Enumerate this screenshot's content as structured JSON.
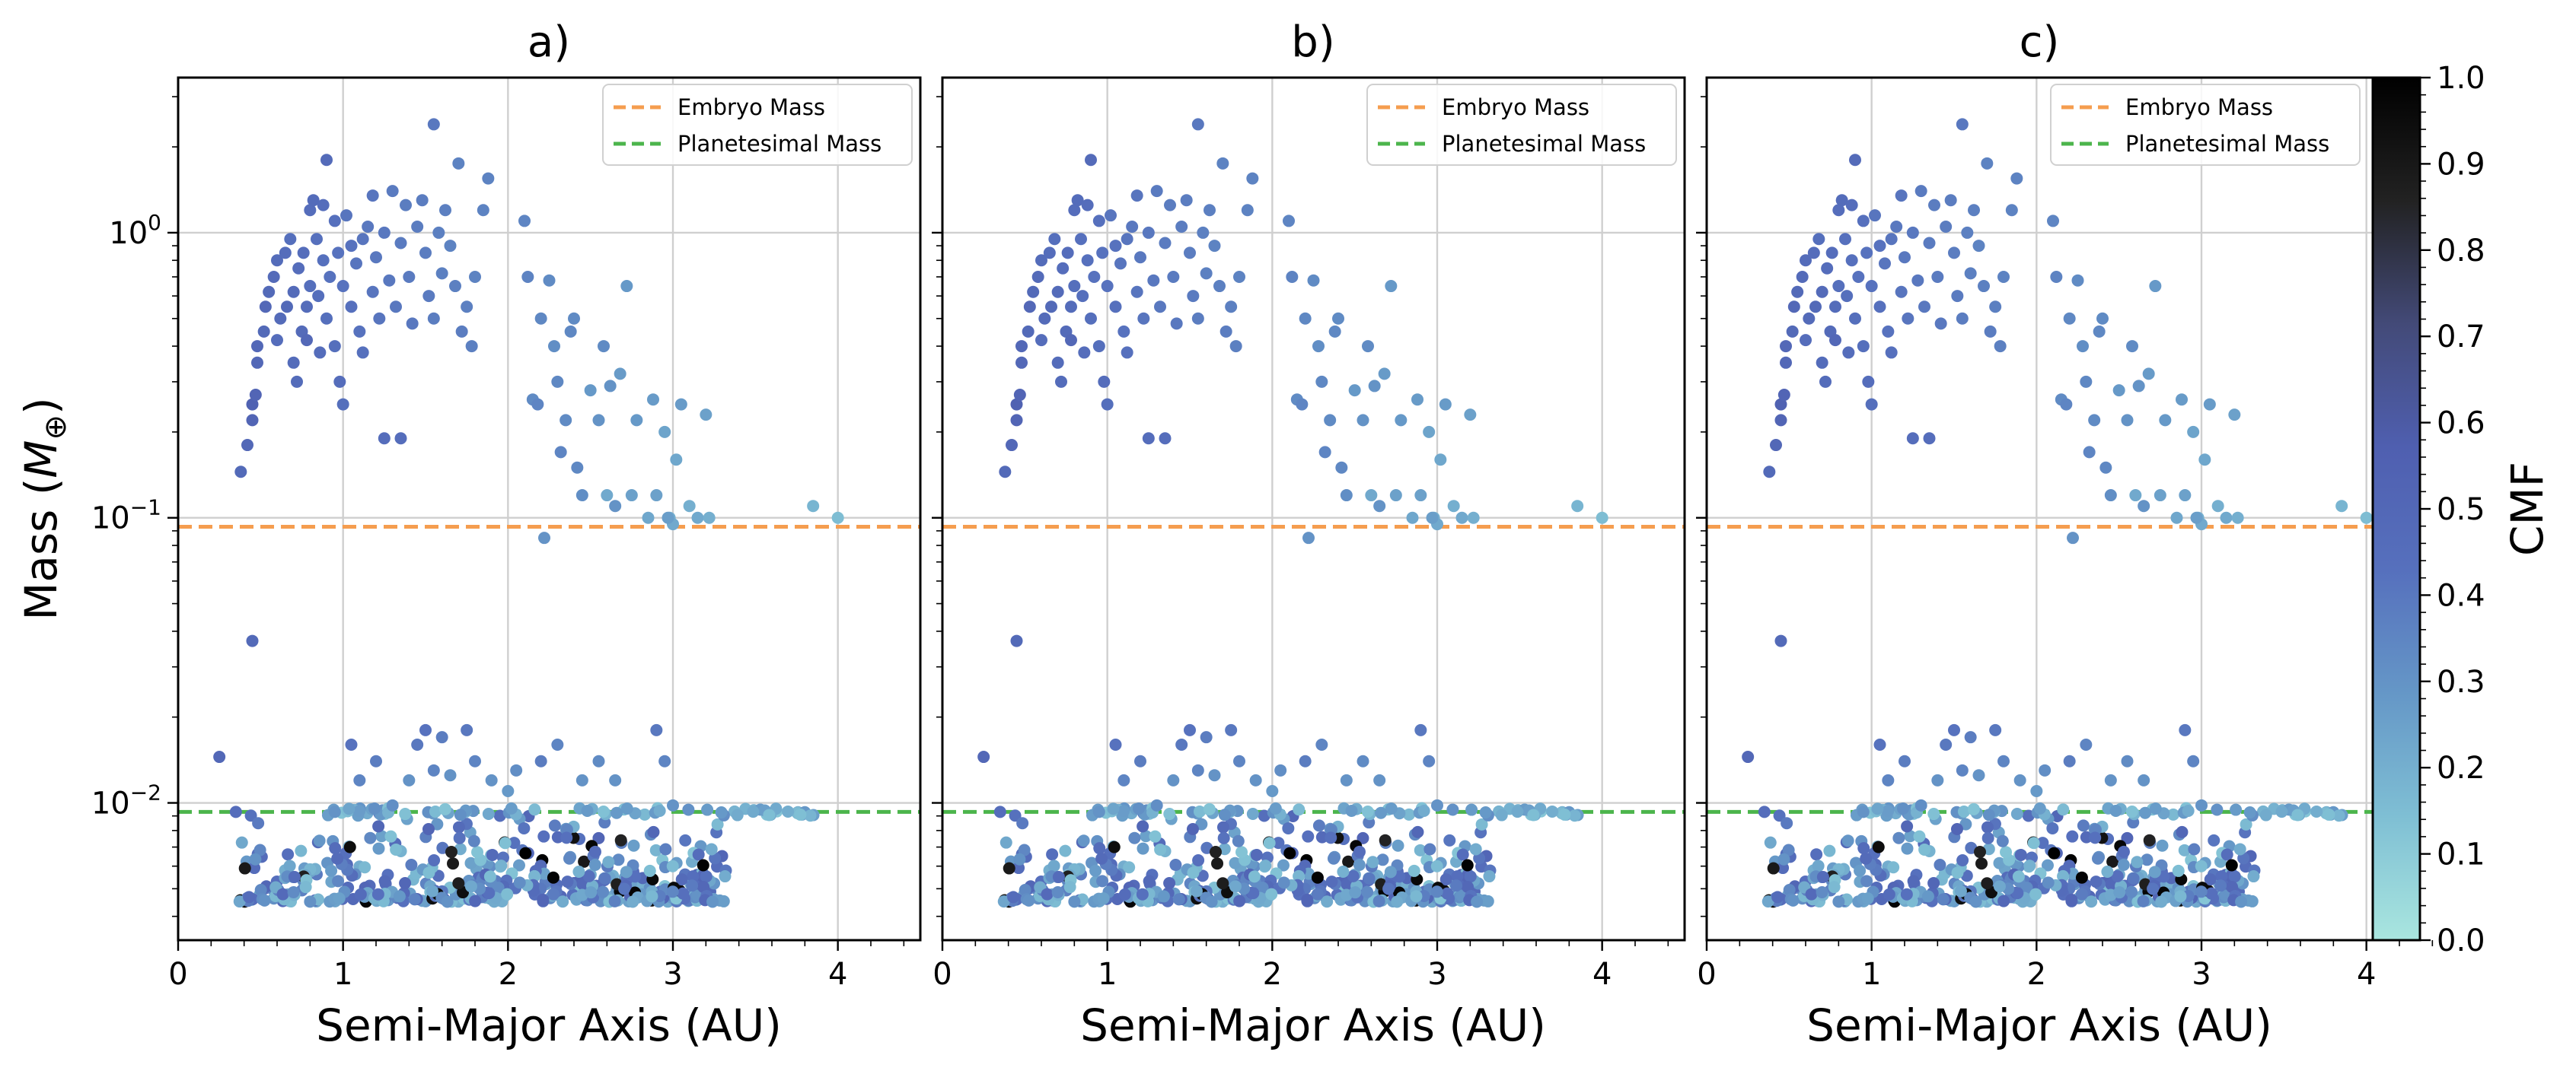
{
  "chart_data": {
    "type": "scatter",
    "x_scale": "linear",
    "y_scale": "log",
    "xlim": [
      0,
      4.5
    ],
    "ylim": [
      0.0033,
      3.5
    ],
    "ylabel_main": "Mass (",
    "ylabel_sym": "M",
    "ylabel_sub": "⊕",
    "ylabel_end": ")",
    "xlabel": "Semi-Major Axis (AU)",
    "x_ticks": [
      0,
      1,
      2,
      3,
      4
    ],
    "x_tick_labels": [
      "0",
      "1",
      "2",
      "3",
      "4"
    ],
    "y_ticks": [
      0.01,
      0.1,
      1
    ],
    "y_tick_bases": [
      "10",
      "10",
      "10"
    ],
    "y_tick_exps": [
      "−2",
      "−1",
      "0"
    ],
    "grid": true,
    "legend_placement": "top-right",
    "reference_lines": [
      {
        "name": "Embryo Mass",
        "y": 0.093,
        "color": "#f59d4f",
        "style": "dashed"
      },
      {
        "name": "Planetesimal Mass",
        "y": 0.0093,
        "color": "#4cb54c",
        "style": "dashed"
      }
    ],
    "colorbar": {
      "label": "CMF",
      "min": 0,
      "max": 1,
      "ticks": [
        "0.0",
        "0.1",
        "0.2",
        "0.3",
        "0.4",
        "0.5",
        "0.6",
        "0.7",
        "0.8",
        "0.9",
        "1.0"
      ],
      "stops": [
        "#a9e6df",
        "#7fbfd4",
        "#6597c7",
        "#5670bd",
        "#4f5fb0",
        "#434a78",
        "#222222",
        "#000000"
      ]
    },
    "panels": [
      {
        "title": "a)"
      },
      {
        "title": "b)"
      },
      {
        "title": "c)"
      }
    ],
    "large_bodies": [
      [
        0.38,
        0.145,
        0.48
      ],
      [
        0.42,
        0.18,
        0.5
      ],
      [
        0.45,
        0.22,
        0.52
      ],
      [
        0.45,
        0.25,
        0.55
      ],
      [
        0.47,
        0.27,
        0.52
      ],
      [
        0.48,
        0.35,
        0.5
      ],
      [
        0.48,
        0.4,
        0.5
      ],
      [
        0.52,
        0.45,
        0.48
      ],
      [
        0.53,
        0.55,
        0.5
      ],
      [
        0.55,
        0.62,
        0.48
      ],
      [
        0.58,
        0.7,
        0.47
      ],
      [
        0.6,
        0.42,
        0.45
      ],
      [
        0.6,
        0.8,
        0.46
      ],
      [
        0.62,
        0.5,
        0.47
      ],
      [
        0.65,
        0.85,
        0.45
      ],
      [
        0.66,
        0.55,
        0.48
      ],
      [
        0.68,
        0.95,
        0.44
      ],
      [
        0.7,
        0.35,
        0.46
      ],
      [
        0.7,
        0.62,
        0.47
      ],
      [
        0.72,
        0.3,
        0.46
      ],
      [
        0.73,
        0.75,
        0.45
      ],
      [
        0.75,
        0.45,
        0.47
      ],
      [
        0.76,
        0.85,
        0.45
      ],
      [
        0.78,
        0.55,
        0.46
      ],
      [
        0.78,
        0.42,
        0.5
      ],
      [
        0.8,
        0.65,
        0.44
      ],
      [
        0.8,
        1.2,
        0.45
      ],
      [
        0.82,
        1.3,
        0.46
      ],
      [
        0.84,
        0.95,
        0.43
      ],
      [
        0.85,
        0.6,
        0.44
      ],
      [
        0.86,
        0.38,
        0.45
      ],
      [
        0.88,
        0.8,
        0.43
      ],
      [
        0.88,
        1.25,
        0.45
      ],
      [
        0.9,
        0.5,
        0.44
      ],
      [
        0.9,
        1.8,
        0.47
      ],
      [
        0.92,
        0.7,
        0.42
      ],
      [
        0.95,
        1.1,
        0.43
      ],
      [
        0.95,
        0.4,
        0.44
      ],
      [
        0.97,
        0.85,
        0.42
      ],
      [
        0.98,
        0.3,
        0.45
      ],
      [
        1.0,
        0.65,
        0.42
      ],
      [
        1.0,
        0.25,
        0.44
      ],
      [
        1.02,
        1.15,
        0.41
      ],
      [
        1.05,
        0.9,
        0.42
      ],
      [
        1.05,
        0.55,
        0.43
      ],
      [
        1.08,
        0.78,
        0.41
      ],
      [
        1.1,
        0.45,
        0.42
      ],
      [
        1.12,
        0.95,
        0.41
      ],
      [
        1.12,
        0.38,
        0.43
      ],
      [
        1.15,
        1.05,
        0.4
      ],
      [
        1.18,
        0.62,
        0.41
      ],
      [
        1.18,
        1.35,
        0.41
      ],
      [
        1.2,
        0.82,
        0.4
      ],
      [
        1.22,
        0.5,
        0.41
      ],
      [
        1.25,
        1.0,
        0.4
      ],
      [
        1.25,
        0.19,
        0.45
      ],
      [
        1.28,
        0.68,
        0.4
      ],
      [
        1.3,
        1.4,
        0.39
      ],
      [
        1.32,
        0.55,
        0.4
      ],
      [
        1.35,
        0.92,
        0.39
      ],
      [
        1.35,
        0.19,
        0.45
      ],
      [
        1.38,
        1.25,
        0.38
      ],
      [
        1.4,
        0.7,
        0.39
      ],
      [
        1.42,
        0.48,
        0.4
      ],
      [
        1.45,
        1.05,
        0.38
      ],
      [
        1.48,
        1.3,
        0.38
      ],
      [
        1.5,
        0.85,
        0.38
      ],
      [
        1.52,
        0.6,
        0.39
      ],
      [
        1.55,
        0.5,
        0.38
      ],
      [
        1.55,
        2.4,
        0.4
      ],
      [
        1.58,
        1.0,
        0.37
      ],
      [
        1.6,
        0.72,
        0.37
      ],
      [
        1.62,
        1.2,
        0.37
      ],
      [
        1.65,
        0.9,
        0.36
      ],
      [
        1.68,
        0.65,
        0.37
      ],
      [
        1.7,
        1.75,
        0.36
      ],
      [
        1.72,
        0.45,
        0.38
      ],
      [
        1.75,
        0.55,
        0.37
      ],
      [
        1.78,
        0.4,
        0.37
      ],
      [
        1.8,
        0.7,
        0.36
      ],
      [
        1.85,
        1.2,
        0.36
      ],
      [
        1.88,
        1.55,
        0.36
      ],
      [
        2.1,
        1.1,
        0.35
      ],
      [
        2.12,
        0.7,
        0.36
      ],
      [
        2.15,
        0.26,
        0.33
      ],
      [
        2.18,
        0.25,
        0.35
      ],
      [
        2.2,
        0.5,
        0.34
      ],
      [
        2.22,
        0.085,
        0.3
      ],
      [
        2.25,
        0.68,
        0.33
      ],
      [
        2.28,
        0.4,
        0.32
      ],
      [
        2.3,
        0.3,
        0.34
      ],
      [
        2.32,
        0.17,
        0.35
      ],
      [
        2.35,
        0.22,
        0.33
      ],
      [
        2.38,
        0.45,
        0.34
      ],
      [
        2.4,
        0.5,
        0.33
      ],
      [
        2.42,
        0.15,
        0.34
      ],
      [
        2.45,
        0.12,
        0.32
      ],
      [
        2.5,
        0.28,
        0.28
      ],
      [
        2.55,
        0.22,
        0.3
      ],
      [
        2.58,
        0.4,
        0.33
      ],
      [
        2.6,
        0.12,
        0.22
      ],
      [
        2.62,
        0.29,
        0.3
      ],
      [
        2.65,
        0.11,
        0.3
      ],
      [
        2.68,
        0.32,
        0.27
      ],
      [
        2.72,
        0.65,
        0.28
      ],
      [
        2.75,
        0.12,
        0.25
      ],
      [
        2.78,
        0.22,
        0.28
      ],
      [
        2.85,
        0.1,
        0.23
      ],
      [
        2.88,
        0.26,
        0.27
      ],
      [
        2.9,
        0.12,
        0.25
      ],
      [
        2.95,
        0.2,
        0.24
      ],
      [
        2.98,
        0.1,
        0.2
      ],
      [
        3.0,
        0.095,
        0.22
      ],
      [
        3.02,
        0.16,
        0.23
      ],
      [
        3.05,
        0.25,
        0.27
      ],
      [
        3.1,
        0.11,
        0.2
      ],
      [
        3.15,
        0.1,
        0.22
      ],
      [
        3.2,
        0.23,
        0.25
      ],
      [
        3.22,
        0.1,
        0.2
      ],
      [
        3.85,
        0.11,
        0.18
      ],
      [
        4.0,
        0.1,
        0.15
      ],
      [
        0.45,
        0.037,
        0.48
      ],
      [
        2.97,
        0.1,
        0.26
      ]
    ],
    "mid_bodies": [
      [
        0.25,
        0.0145,
        0.5
      ],
      [
        0.35,
        0.0093,
        0.45
      ],
      [
        0.95,
        0.0093,
        0.3
      ],
      [
        1.05,
        0.016,
        0.42
      ],
      [
        1.1,
        0.012,
        0.35
      ],
      [
        1.2,
        0.014,
        0.38
      ],
      [
        1.3,
        0.0098,
        0.32
      ],
      [
        1.4,
        0.012,
        0.3
      ],
      [
        1.45,
        0.016,
        0.4
      ],
      [
        1.5,
        0.018,
        0.42
      ],
      [
        1.55,
        0.013,
        0.35
      ],
      [
        1.6,
        0.017,
        0.38
      ],
      [
        1.65,
        0.0125,
        0.3
      ],
      [
        1.75,
        0.018,
        0.4
      ],
      [
        1.8,
        0.014,
        0.35
      ],
      [
        1.9,
        0.012,
        0.3
      ],
      [
        2.0,
        0.011,
        0.28
      ],
      [
        2.05,
        0.013,
        0.32
      ],
      [
        2.2,
        0.014,
        0.38
      ],
      [
        2.3,
        0.016,
        0.35
      ],
      [
        2.45,
        0.012,
        0.3
      ],
      [
        2.55,
        0.014,
        0.33
      ],
      [
        2.65,
        0.012,
        0.3
      ],
      [
        2.9,
        0.018,
        0.4
      ],
      [
        2.95,
        0.014,
        0.35
      ],
      [
        3.0,
        0.0098,
        0.3
      ]
    ]
  }
}
